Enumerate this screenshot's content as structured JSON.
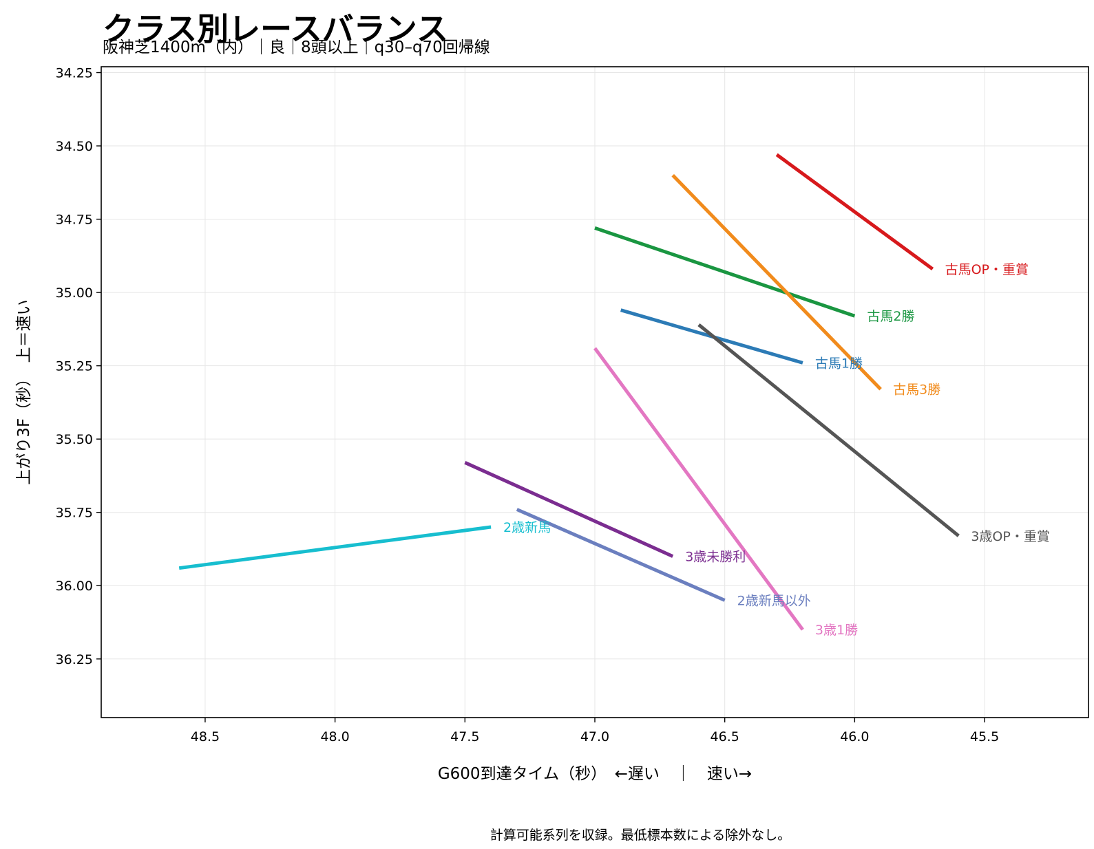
{
  "chart_data": {
    "type": "line",
    "title": "クラス別レースバランス",
    "subtitle": "阪神芝1400m（内）｜良｜8頭以上｜q30–q70回帰線",
    "xlabel": "G600到達タイム（秒）　←遅い　｜　速い→",
    "ylabel": "上がり3F（秒）　上＝速い",
    "note": "計算可能系列を収録。最低標本数による除外なし。",
    "x_reversed": true,
    "y_reversed": true,
    "xlim": [
      48.9,
      45.1
    ],
    "ylim": [
      36.45,
      34.23
    ],
    "x_ticks": [
      "48.5",
      "48.0",
      "47.5",
      "47.0",
      "46.5",
      "46.0",
      "45.5"
    ],
    "y_ticks": [
      "34.25",
      "34.50",
      "34.75",
      "35.00",
      "35.25",
      "35.50",
      "35.75",
      "36.00",
      "36.25"
    ],
    "grid": true,
    "series": [
      {
        "name": "古馬OP・重賞",
        "color": "#d7191c",
        "x": [
          46.3,
          45.7
        ],
        "y": [
          34.53,
          34.92
        ]
      },
      {
        "name": "古馬2勝",
        "color": "#1a9641",
        "x": [
          47.0,
          46.0
        ],
        "y": [
          34.78,
          35.08
        ]
      },
      {
        "name": "古馬1勝",
        "color": "#2c7bb6",
        "x": [
          46.9,
          46.2
        ],
        "y": [
          35.06,
          35.24
        ]
      },
      {
        "name": "古馬3勝",
        "color": "#f18b1c",
        "x": [
          46.7,
          45.9
        ],
        "y": [
          34.6,
          35.33
        ]
      },
      {
        "name": "3歳OP・重賞",
        "color": "#555555",
        "x": [
          46.6,
          45.6
        ],
        "y": [
          35.11,
          35.83
        ]
      },
      {
        "name": "2歳新馬",
        "color": "#17becf",
        "x": [
          48.6,
          47.4
        ],
        "y": [
          35.94,
          35.8
        ]
      },
      {
        "name": "3歳未勝利",
        "color": "#7b2d90",
        "x": [
          47.5,
          46.7
        ],
        "y": [
          35.58,
          35.9
        ]
      },
      {
        "name": "2歳新馬以外",
        "color": "#6b7fbf",
        "x": [
          47.3,
          46.5
        ],
        "y": [
          35.74,
          36.05
        ]
      },
      {
        "name": "3歳1勝",
        "color": "#e377c2",
        "x": [
          47.0,
          46.2
        ],
        "y": [
          35.19,
          36.15
        ]
      }
    ]
  }
}
